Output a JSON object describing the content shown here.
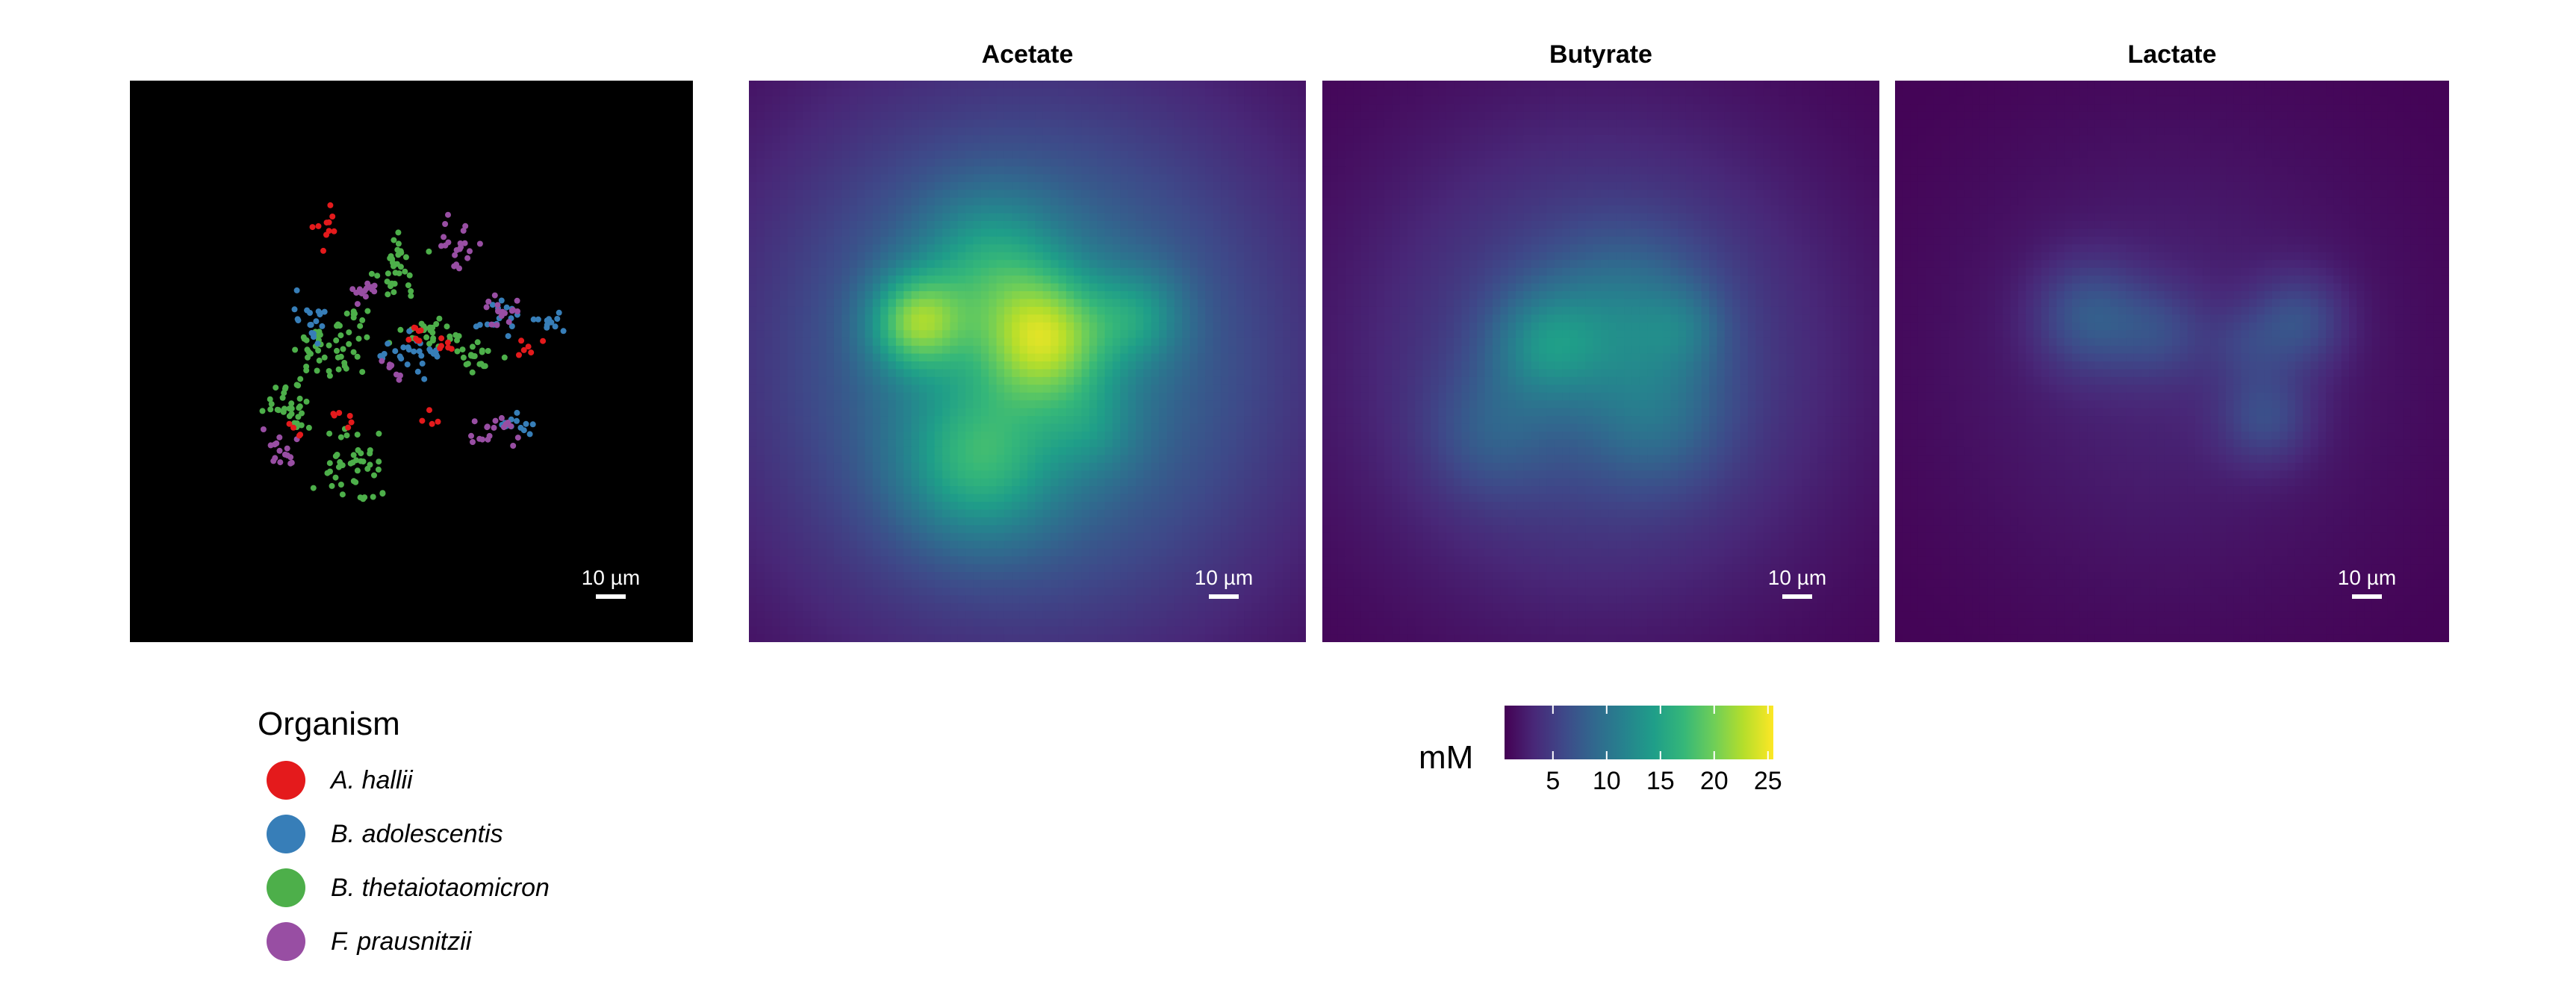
{
  "chart_data": [
    {
      "type": "scatter",
      "panel": "organism",
      "background": "#000000",
      "xlim": [
        0,
        100
      ],
      "ylim": [
        0,
        100
      ],
      "scale_bar": "10 µm",
      "legend": {
        "title": "Organism",
        "placement": "bottom-left",
        "entries": [
          {
            "name": "A. hallii",
            "color": "#e41a1c"
          },
          {
            "name": "B. adolescentis",
            "color": "#377eb8"
          },
          {
            "name": "B. thetaiotaomicron",
            "color": "#4daf4a"
          },
          {
            "name": "F. prausnitzii",
            "color": "#984ea3"
          }
        ]
      },
      "clusters": [
        {
          "series": "B. thetaiotaomicron",
          "n": 32,
          "x": 47,
          "y": 33,
          "sx": 2.2,
          "sy": 3.5
        },
        {
          "series": "B. thetaiotaomicron",
          "n": 42,
          "x": 36,
          "y": 48,
          "sx": 3.5,
          "sy": 2.7
        },
        {
          "series": "B. thetaiotaomicron",
          "n": 26,
          "x": 53,
          "y": 45,
          "sx": 2.7,
          "sy": 1.5
        },
        {
          "series": "B. thetaiotaomicron",
          "n": 22,
          "x": 61,
          "y": 49,
          "sx": 2.4,
          "sy": 2.0
        },
        {
          "series": "B. thetaiotaomicron",
          "n": 32,
          "x": 28.5,
          "y": 58,
          "sx": 2.3,
          "sy": 2.8
        },
        {
          "series": "B. thetaiotaomicron",
          "n": 44,
          "x": 40,
          "y": 68.5,
          "sx": 3.0,
          "sy": 4.0
        },
        {
          "series": "B. thetaiotaomicron",
          "n": 8,
          "x": 41,
          "y": 42,
          "sx": 1.6,
          "sy": 1.2
        },
        {
          "series": "B. adolescentis",
          "n": 18,
          "x": 32,
          "y": 42,
          "sx": 1.5,
          "sy": 2.0
        },
        {
          "series": "B. adolescentis",
          "n": 20,
          "x": 51,
          "y": 48.5,
          "sx": 2.1,
          "sy": 2.0
        },
        {
          "series": "B. adolescentis",
          "n": 16,
          "x": 65,
          "y": 42,
          "sx": 1.6,
          "sy": 1.5
        },
        {
          "series": "B. adolescentis",
          "n": 12,
          "x": 74.5,
          "y": 43,
          "sx": 1.6,
          "sy": 1.6
        },
        {
          "series": "B. adolescentis",
          "n": 12,
          "x": 70,
          "y": 61.5,
          "sx": 1.9,
          "sy": 1.5
        },
        {
          "series": "B. adolescentis",
          "n": 6,
          "x": 47,
          "y": 49,
          "sx": 1.0,
          "sy": 1.0
        },
        {
          "series": "F. prausnitzii",
          "n": 20,
          "x": 58,
          "y": 29,
          "sx": 2.0,
          "sy": 2.2
        },
        {
          "series": "F. prausnitzii",
          "n": 14,
          "x": 42,
          "y": 38,
          "sx": 1.8,
          "sy": 1.2
        },
        {
          "series": "F. prausnitzii",
          "n": 16,
          "x": 66.5,
          "y": 41,
          "sx": 1.5,
          "sy": 1.4
        },
        {
          "series": "F. prausnitzii",
          "n": 18,
          "x": 64,
          "y": 62.5,
          "sx": 2.1,
          "sy": 1.3
        },
        {
          "series": "F. prausnitzii",
          "n": 16,
          "x": 26.5,
          "y": 65.5,
          "sx": 1.7,
          "sy": 1.9
        },
        {
          "series": "F. prausnitzii",
          "n": 8,
          "x": 47,
          "y": 51,
          "sx": 1.2,
          "sy": 1.4
        },
        {
          "series": "A. hallii",
          "n": 10,
          "x": 34.5,
          "y": 26.5,
          "sx": 1.2,
          "sy": 1.5
        },
        {
          "series": "A. hallii",
          "n": 8,
          "x": 50.5,
          "y": 45,
          "sx": 1.3,
          "sy": 1.0
        },
        {
          "series": "A. hallii",
          "n": 6,
          "x": 56.5,
          "y": 47,
          "sx": 1.2,
          "sy": 1.0
        },
        {
          "series": "A. hallii",
          "n": 6,
          "x": 70,
          "y": 47.5,
          "sx": 1.2,
          "sy": 1.0
        },
        {
          "series": "A. hallii",
          "n": 6,
          "x": 37,
          "y": 60,
          "sx": 1.5,
          "sy": 1.0
        },
        {
          "series": "A. hallii",
          "n": 4,
          "x": 54,
          "y": 61,
          "sx": 1.0,
          "sy": 1.0
        },
        {
          "series": "A. hallii",
          "n": 4,
          "x": 29,
          "y": 62,
          "sx": 1.0,
          "sy": 1.0
        }
      ]
    },
    {
      "type": "heatmap",
      "title": "Acetate",
      "xlim": [
        0,
        100
      ],
      "ylim": [
        0,
        100
      ],
      "scale_bar": "10 µm",
      "base": {
        "level": 10.5,
        "x": 50,
        "y": 50,
        "s": 35
      },
      "blobs": [
        {
          "amp": 11.5,
          "x": 30,
          "y": 43,
          "s": 6
        },
        {
          "amp": 12.0,
          "x": 53,
          "y": 46,
          "s": 8
        },
        {
          "amp": 8.0,
          "x": 41,
          "y": 68,
          "s": 10
        },
        {
          "amp": 6.0,
          "x": 43,
          "y": 32,
          "s": 9
        },
        {
          "amp": 5.0,
          "x": 70,
          "y": 42,
          "s": 6
        },
        {
          "amp": 3.0,
          "x": 62,
          "y": 62,
          "s": 6
        }
      ]
    },
    {
      "type": "heatmap",
      "title": "Butyrate",
      "xlim": [
        0,
        100
      ],
      "ylim": [
        0,
        100
      ],
      "scale_bar": "10 µm",
      "base": {
        "level": 6.5,
        "x": 50,
        "y": 50,
        "s": 30
      },
      "blobs": [
        {
          "amp": 6.0,
          "x": 40,
          "y": 47,
          "s": 7
        },
        {
          "amp": 4.5,
          "x": 55,
          "y": 42,
          "s": 10
        },
        {
          "amp": 3.5,
          "x": 60,
          "y": 60,
          "s": 9
        },
        {
          "amp": 3.0,
          "x": 30,
          "y": 63,
          "s": 8
        },
        {
          "amp": 2.5,
          "x": 65,
          "y": 44,
          "s": 5
        }
      ]
    },
    {
      "type": "heatmap",
      "title": "Lactate",
      "xlim": [
        0,
        100
      ],
      "ylim": [
        0,
        100
      ],
      "scale_bar": "10 µm",
      "base": {
        "level": 2.5,
        "x": 50,
        "y": 50,
        "s": 30
      },
      "blobs": [
        {
          "amp": 5.0,
          "x": 35,
          "y": 42,
          "s": 7
        },
        {
          "amp": 3.0,
          "x": 48,
          "y": 45,
          "s": 6
        },
        {
          "amp": 4.5,
          "x": 73,
          "y": 43,
          "s": 6
        },
        {
          "amp": 4.0,
          "x": 67,
          "y": 60,
          "s": 6
        },
        {
          "amp": 2.0,
          "x": 63,
          "y": 47,
          "s": 5
        }
      ]
    }
  ],
  "colorbar": {
    "label": "mM",
    "range": [
      0.5,
      25.5
    ],
    "ticks": [
      5,
      10,
      15,
      20,
      25
    ],
    "colormap": "viridis",
    "colors": [
      "#440154",
      "#482878",
      "#3e4989",
      "#31688e",
      "#26828e",
      "#1f9e89",
      "#35b779",
      "#6ece58",
      "#b5de2b",
      "#fde725"
    ]
  }
}
